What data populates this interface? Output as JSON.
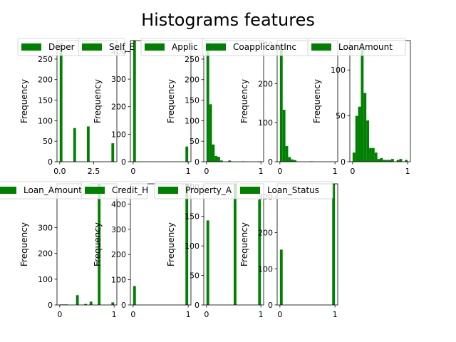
{
  "title": "Histograms features",
  "colors": {
    "bar": "#008000",
    "axis": "#000000",
    "legend_border": "#cccccc"
  },
  "chart_data": [
    {
      "type": "bar",
      "legend": "Dependents",
      "legend_visible": "Deper",
      "ylabel": "Frequency",
      "xlim": [
        -0.2,
        4.2
      ],
      "ylim": [
        0,
        295
      ],
      "xticks": [
        {
          "v": 0,
          "label": "0.0"
        },
        {
          "v": 2.5,
          "label": "2.5"
        }
      ],
      "yticks": [
        {
          "v": 0,
          "label": "0"
        },
        {
          "v": 50,
          "label": "50"
        },
        {
          "v": 100,
          "label": "100"
        },
        {
          "v": 150,
          "label": "150"
        },
        {
          "v": 200,
          "label": "200"
        },
        {
          "v": 250,
          "label": "250"
        }
      ],
      "bins": [
        [
          0,
          0.2,
          290
        ],
        [
          1,
          1.2,
          82
        ],
        [
          2,
          2.2,
          86
        ],
        [
          3.8,
          4.0,
          45
        ]
      ]
    },
    {
      "type": "bar",
      "legend": "Self_Employed",
      "legend_visible": "Self_E",
      "ylabel": "Frequency",
      "xlim": [
        -0.05,
        1.05
      ],
      "ylim": [
        0,
        440
      ],
      "xticks": [
        {
          "v": 0,
          "label": "0"
        },
        {
          "v": 1,
          "label": "1"
        }
      ],
      "yticks": [
        {
          "v": 0,
          "label": "0"
        },
        {
          "v": 100,
          "label": "100"
        },
        {
          "v": 200,
          "label": "200"
        },
        {
          "v": 300,
          "label": "300"
        },
        {
          "v": 400,
          "label": "400"
        }
      ],
      "bins": [
        [
          0,
          0.05,
          440
        ],
        [
          0.95,
          1.0,
          55
        ]
      ]
    },
    {
      "type": "bar",
      "legend": "ApplicantIncome",
      "legend_visible": "Applic",
      "ylabel": "Frequency",
      "xlim": [
        -0.05,
        1.05
      ],
      "ylim": [
        0,
        295
      ],
      "xticks": [
        {
          "v": 0,
          "label": "0"
        },
        {
          "v": 1,
          "label": "1"
        }
      ],
      "yticks": [
        {
          "v": 0,
          "label": "0"
        },
        {
          "v": 50,
          "label": "50"
        },
        {
          "v": 100,
          "label": "100"
        },
        {
          "v": 150,
          "label": "150"
        },
        {
          "v": 200,
          "label": "200"
        },
        {
          "v": 250,
          "label": "250"
        }
      ],
      "bins": [
        [
          0,
          0.05,
          290
        ],
        [
          0.05,
          0.1,
          140
        ],
        [
          0.1,
          0.15,
          42
        ],
        [
          0.15,
          0.2,
          14
        ],
        [
          0.2,
          0.25,
          12
        ],
        [
          0.25,
          0.3,
          3
        ],
        [
          0.4,
          0.45,
          3
        ],
        [
          0.65,
          0.7,
          1
        ],
        [
          0.95,
          1.0,
          1
        ]
      ]
    },
    {
      "type": "bar",
      "legend": "CoapplicantIncome",
      "legend_visible": "CoapplicantInc",
      "ylabel": "Frequency",
      "xlim": [
        -0.05,
        1.05
      ],
      "ylim": [
        0,
        310
      ],
      "xticks": [
        {
          "v": 0,
          "label": "0"
        },
        {
          "v": 1,
          "label": "1"
        }
      ],
      "yticks": [
        {
          "v": 0,
          "label": "0"
        },
        {
          "v": 100,
          "label": "100"
        },
        {
          "v": 200,
          "label": "200"
        },
        {
          "v": 300,
          "label": "300"
        }
      ],
      "bins": [
        [
          0,
          0.05,
          300
        ],
        [
          0.05,
          0.1,
          133
        ],
        [
          0.1,
          0.15,
          40
        ],
        [
          0.15,
          0.2,
          12
        ],
        [
          0.2,
          0.25,
          6
        ],
        [
          0.25,
          0.3,
          4
        ],
        [
          0.55,
          0.6,
          1
        ]
      ]
    },
    {
      "type": "bar",
      "legend": "LoanAmount",
      "legend_visible": "LoanAmount",
      "ylabel": "Frequency",
      "xlim": [
        -0.05,
        1.05
      ],
      "ylim": [
        0,
        132
      ],
      "xticks": [
        {
          "v": 0,
          "label": "0"
        },
        {
          "v": 1,
          "label": "1"
        }
      ],
      "yticks": [
        {
          "v": 0,
          "label": "0"
        },
        {
          "v": 50,
          "label": "50"
        },
        {
          "v": 100,
          "label": "100"
        }
      ],
      "bins": [
        [
          0,
          0.05,
          10
        ],
        [
          0.05,
          0.1,
          50
        ],
        [
          0.1,
          0.15,
          60
        ],
        [
          0.15,
          0.2,
          128
        ],
        [
          0.2,
          0.25,
          75
        ],
        [
          0.25,
          0.3,
          45
        ],
        [
          0.3,
          0.35,
          15
        ],
        [
          0.35,
          0.4,
          15
        ],
        [
          0.4,
          0.45,
          10
        ],
        [
          0.45,
          0.5,
          3
        ],
        [
          0.5,
          0.55,
          4
        ],
        [
          0.55,
          0.6,
          2
        ],
        [
          0.6,
          0.65,
          2
        ],
        [
          0.65,
          0.7,
          2
        ],
        [
          0.7,
          0.75,
          3
        ],
        [
          0.8,
          0.85,
          2
        ],
        [
          0.85,
          0.9,
          3
        ],
        [
          0.95,
          1.0,
          2
        ]
      ]
    },
    {
      "type": "bar",
      "legend": "Loan_Amount_Term",
      "legend_visible": "Loan_Amount_",
      "ylabel": "Frequency",
      "xlim": [
        -0.05,
        1.05
      ],
      "ylim": [
        0,
        470
      ],
      "xticks": [
        {
          "v": 0,
          "label": "0"
        },
        {
          "v": 1,
          "label": "1"
        }
      ],
      "yticks": [
        {
          "v": 0,
          "label": "0"
        },
        {
          "v": 100,
          "label": "100"
        },
        {
          "v": 200,
          "label": "200"
        },
        {
          "v": 300,
          "label": "300"
        }
      ],
      "bins": [
        [
          0,
          0.05,
          2
        ],
        [
          0.05,
          0.1,
          2
        ],
        [
          0.1,
          0.15,
          2
        ],
        [
          0.3,
          0.35,
          38
        ],
        [
          0.45,
          0.5,
          4
        ],
        [
          0.55,
          0.6,
          13
        ],
        [
          0.7,
          0.75,
          470
        ],
        [
          0.95,
          1.0,
          10
        ]
      ]
    },
    {
      "type": "bar",
      "legend": "Credit_History",
      "legend_visible": "Credit_H",
      "ylabel": "Frequency",
      "xlim": [
        -0.05,
        1.05
      ],
      "ylim": [
        0,
        480
      ],
      "xticks": [
        {
          "v": 0,
          "label": "0"
        },
        {
          "v": 1,
          "label": "1"
        }
      ],
      "yticks": [
        {
          "v": 0,
          "label": "0"
        },
        {
          "v": 100,
          "label": "100"
        },
        {
          "v": 200,
          "label": "200"
        },
        {
          "v": 300,
          "label": "300"
        },
        {
          "v": 400,
          "label": "400"
        }
      ],
      "bins": [
        [
          0,
          0.05,
          75
        ],
        [
          0.95,
          1.0,
          480
        ]
      ]
    },
    {
      "type": "bar",
      "legend": "Property_Area",
      "legend_visible": "Property_A",
      "ylabel": "Frequency",
      "xlim": [
        -0.05,
        1.05
      ],
      "ylim": [
        0,
        205
      ],
      "xticks": [
        {
          "v": 0,
          "label": "0"
        },
        {
          "v": 1,
          "label": "1"
        }
      ],
      "yticks": [
        {
          "v": 0,
          "label": "0"
        },
        {
          "v": 50,
          "label": "50"
        },
        {
          "v": 100,
          "label": "100"
        },
        {
          "v": 150,
          "label": "150"
        },
        {
          "v": 200,
          "label": "200"
        }
      ],
      "bins": [
        [
          0,
          0.05,
          143
        ],
        [
          0.5,
          0.55,
          205
        ],
        [
          0.95,
          1.0,
          178
        ]
      ]
    },
    {
      "type": "bar",
      "legend": "Loan_Status",
      "legend_visible": "Loan_Status",
      "ylabel": "Frequency",
      "xlim": [
        -0.05,
        1.05
      ],
      "ylim": [
        0,
        335
      ],
      "xticks": [
        {
          "v": 0,
          "label": "0"
        },
        {
          "v": 1,
          "label": "1"
        }
      ],
      "yticks": [
        {
          "v": 0,
          "label": "0"
        },
        {
          "v": 100,
          "label": "100"
        },
        {
          "v": 200,
          "label": "200"
        },
        {
          "v": 300,
          "label": "300"
        }
      ],
      "bins": [
        [
          0,
          0.05,
          153
        ],
        [
          0.95,
          1.0,
          335
        ]
      ]
    }
  ]
}
